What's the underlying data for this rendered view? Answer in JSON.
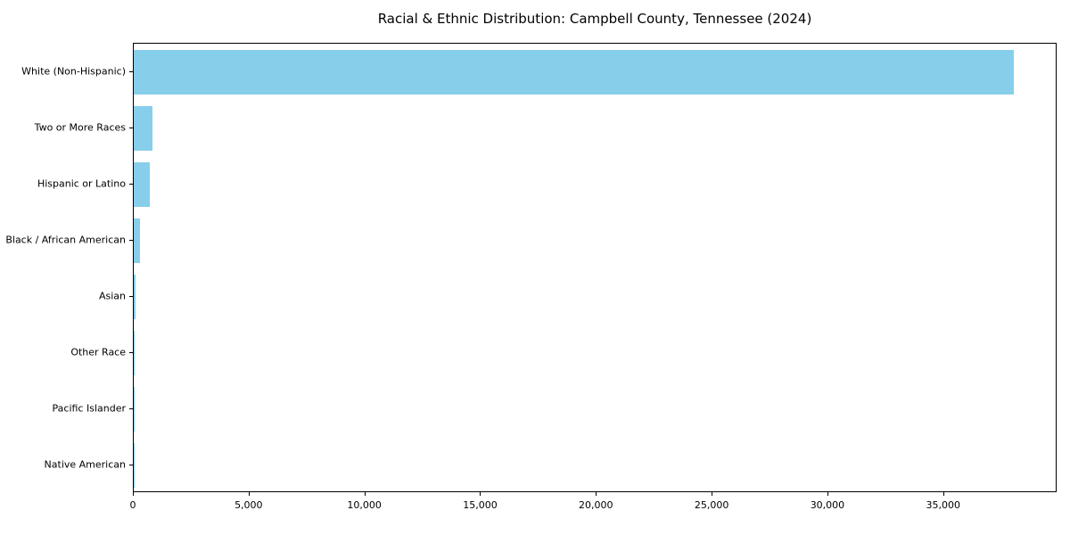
{
  "title": "Racial & Ethnic Distribution: Campbell County, Tennessee (2024)",
  "chart_data": {
    "type": "bar",
    "orientation": "horizontal",
    "title": "Racial & Ethnic Distribution: Campbell County, Tennessee (2024)",
    "xlabel": "",
    "ylabel": "",
    "categories": [
      "White (Non-Hispanic)",
      "Two or More Races",
      "Hispanic or Latino",
      "Black / African American",
      "Asian",
      "Other Race",
      "Pacific Islander",
      "Native American"
    ],
    "values": [
      38000,
      820,
      690,
      270,
      60,
      25,
      10,
      5
    ],
    "bar_color": "#87CEEB",
    "xlim": [
      0,
      39900
    ],
    "x_ticks": [
      {
        "value": 0,
        "label": "0"
      },
      {
        "value": 5000,
        "label": "5,000"
      },
      {
        "value": 10000,
        "label": "10,000"
      },
      {
        "value": 15000,
        "label": "15,000"
      },
      {
        "value": 20000,
        "label": "20,000"
      },
      {
        "value": 25000,
        "label": "25,000"
      },
      {
        "value": 30000,
        "label": "30,000"
      },
      {
        "value": 35000,
        "label": "35,000"
      }
    ],
    "grid": false,
    "legend_position": "none"
  }
}
